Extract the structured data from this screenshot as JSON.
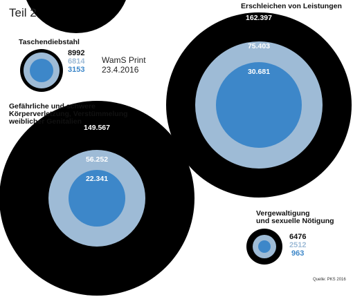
{
  "page_title": "Teil 2",
  "print_info": {
    "publication": "WamS Print",
    "date": "23.4.2016"
  },
  "source": "Quelle: PKS 2016",
  "colors": {
    "outer": "#000000",
    "middle": "#9ebbd6",
    "inner": "#3d87c9",
    "inner_text": "#ffffff",
    "middle_label": "#9ebbd6",
    "inner_label": "#3d87c9"
  },
  "chart_data": {
    "type": "nested-circles",
    "series": [
      {
        "name": "outer"
      },
      {
        "name": "middle"
      },
      {
        "name": "inner"
      }
    ],
    "categories": [
      {
        "title_lines": [],
        "values": []
      },
      {
        "title_lines": [
          "Erschleichen von Leistungen"
        ],
        "values": [
          "162.397",
          "75.403",
          "30.681"
        ]
      },
      {
        "title_lines": [
          "Taschendiebstahl"
        ],
        "values": [
          "8992",
          "6814",
          "3153"
        ]
      },
      {
        "title_lines": [
          "Gefährliche und schwere",
          "Körperverletzung, Verstümmelung",
          "weiblicher Genitalien"
        ],
        "values": [
          "149.567",
          "56.252",
          "22.341"
        ]
      },
      {
        "title_lines": [
          "Vergewaltigung",
          "und sexuelle Nötigung"
        ],
        "values": [
          "6476",
          "2512",
          "963"
        ]
      }
    ]
  }
}
